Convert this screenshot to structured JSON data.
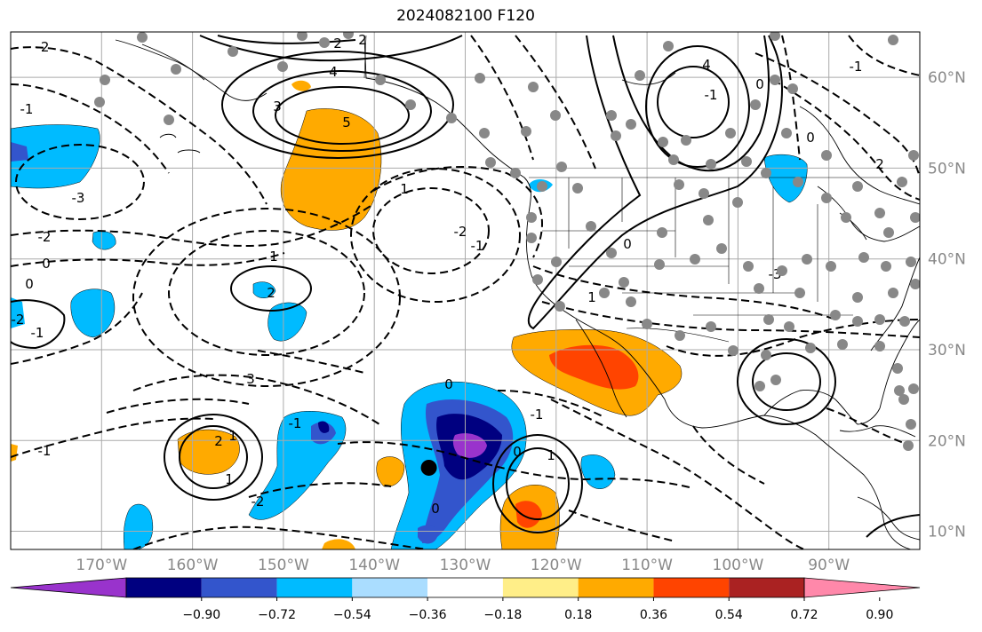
{
  "title": "2024082100 F120",
  "lat_labels": [
    "60°N",
    "50°N",
    "40°N",
    "30°N",
    "20°N",
    "10°N"
  ],
  "lat_values": [
    60,
    50,
    40,
    30,
    20,
    10
  ],
  "lon_labels": [
    "170°W",
    "160°W",
    "150°W",
    "140°W",
    "130°W",
    "120°W",
    "110°W",
    "100°W",
    "90°W"
  ],
  "lon_values": [
    -170,
    -160,
    -150,
    -140,
    -130,
    -120,
    -110,
    -100,
    -90
  ],
  "map_extent": {
    "lon_min": -180,
    "lon_max": -80,
    "lat_min": 8,
    "lat_max": 65
  },
  "colorbar": {
    "tick_labels": [
      "−0.90",
      "−0.72",
      "−0.54",
      "−0.36",
      "−0.18",
      "0.18",
      "0.36",
      "0.54",
      "0.72",
      "0.90"
    ],
    "colors": [
      "#9933cc",
      "#000080",
      "#3355cc",
      "#00bbff",
      "#aaddff",
      "#ffffff",
      "#ffee88",
      "#ffaa00",
      "#ff4400",
      "#aa2222",
      "#ff88aa"
    ],
    "extend": "both"
  },
  "contour_labels": [
    "2",
    "2",
    "4",
    "5",
    "3",
    "-2",
    "-1",
    "-3",
    "-2",
    "0",
    "0",
    "-1",
    "-2",
    "-2",
    "1",
    "-1",
    "1",
    "2",
    "3",
    "4",
    "0",
    "-1",
    "0",
    "-1",
    "-3",
    "2",
    "1",
    "0",
    "-1",
    "0",
    "-1",
    "0",
    "1",
    "2",
    "1",
    "-1",
    "-2",
    "0",
    "1"
  ],
  "hurricane_marker": {
    "lon": -134,
    "lat": 17
  }
}
